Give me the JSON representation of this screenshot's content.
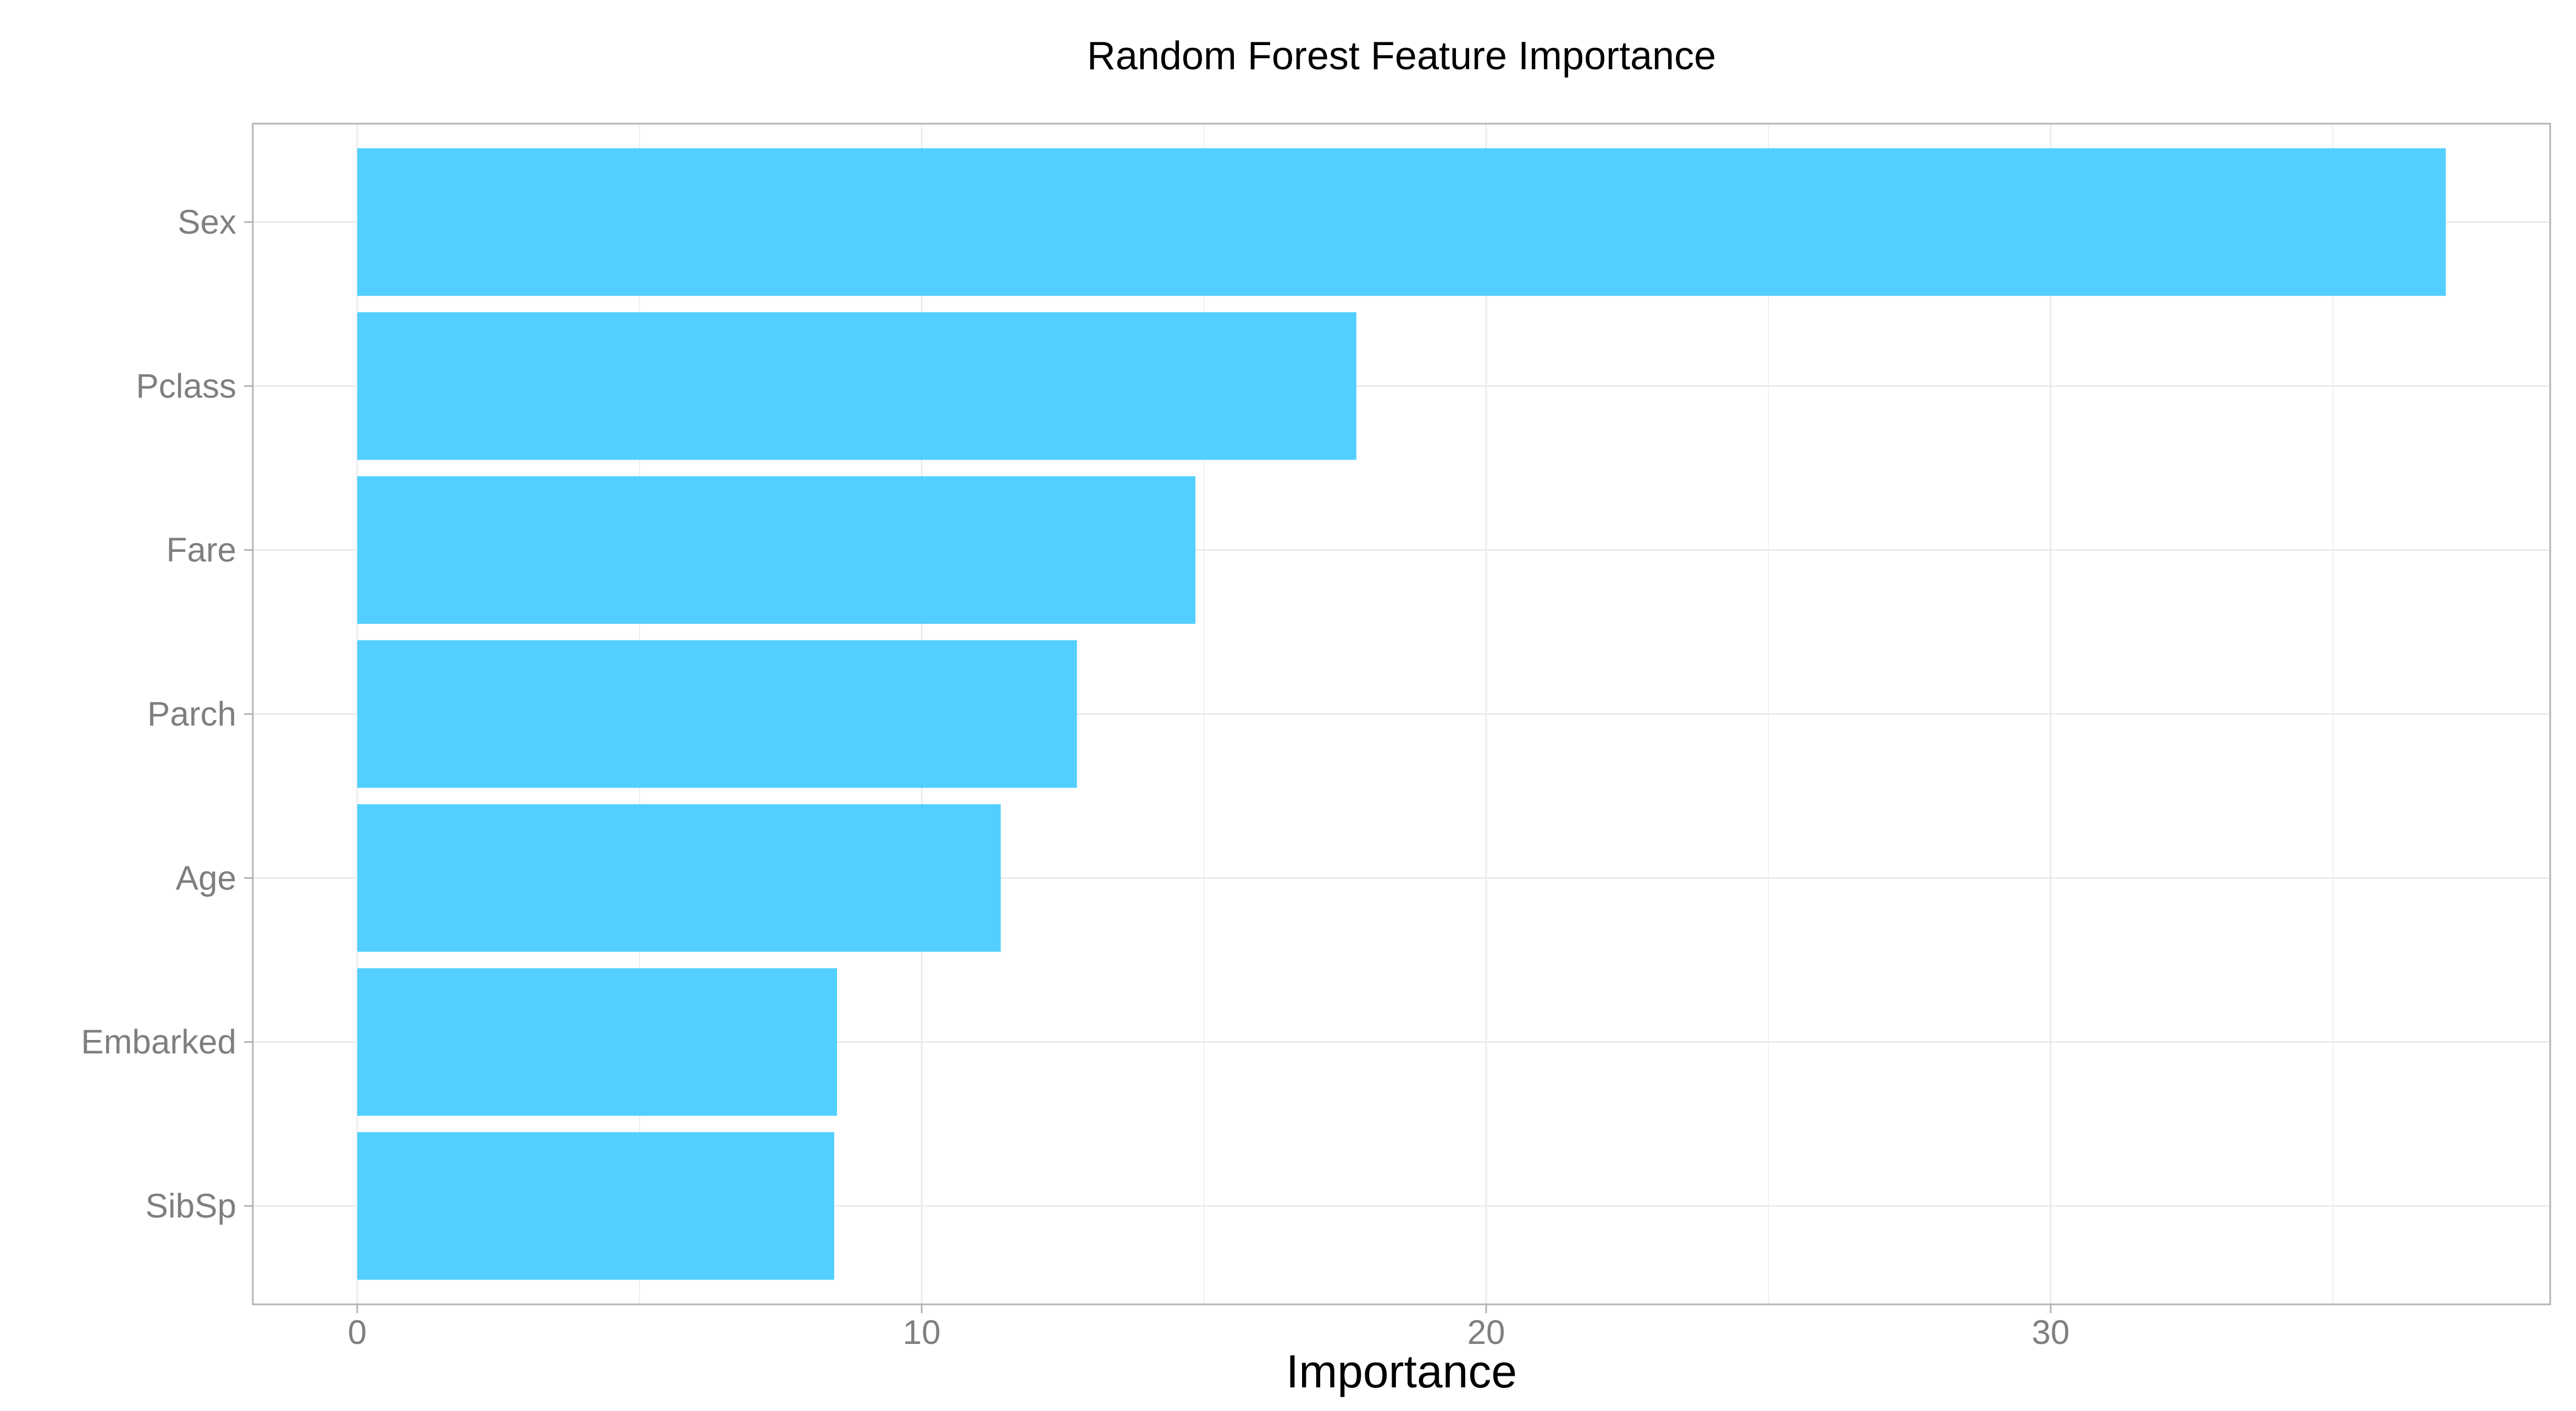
{
  "chart_data": {
    "type": "bar",
    "orientation": "horizontal",
    "title": "Random Forest Feature Importance",
    "xlabel": "Importance",
    "ylabel": "",
    "categories": [
      "Sex",
      "Pclass",
      "Fare",
      "Parch",
      "Age",
      "Embarked",
      "SibSp"
    ],
    "values": [
      37.0,
      17.7,
      14.85,
      12.75,
      11.4,
      8.5,
      8.45
    ],
    "xlim": [
      -1.85,
      38.85
    ],
    "xticks": [
      "0",
      "10",
      "20",
      "30"
    ],
    "grid": true,
    "legend": "none",
    "colors": {
      "bar": "#52cfff",
      "grid": "#ebebeb",
      "panel_border": "#b3b3b3",
      "tick_label": "#7f7f7f",
      "text": "#000000"
    }
  }
}
